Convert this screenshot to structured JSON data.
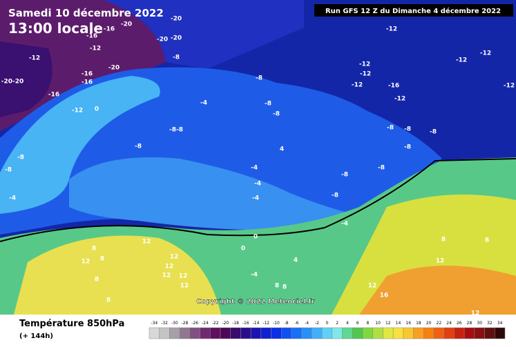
{
  "header": {
    "date": "Samedi 10 décembre 2022",
    "time": "13:00 locale",
    "run": "Run GFS 12 Z du Dimanche 4 décembre 2022"
  },
  "copyright": "Copyright © 2022 Meteociel.fr",
  "legend": {
    "title": "Température 850hPa",
    "subtitle": "(+ 144h)",
    "ticks": [
      -34,
      -32,
      -30,
      -28,
      -26,
      -24,
      -22,
      -20,
      -18,
      -16,
      -14,
      -12,
      -10,
      -8,
      -6,
      -4,
      -2,
      0,
      2,
      4,
      6,
      8,
      10,
      12,
      14,
      16,
      18,
      20,
      22,
      24,
      26,
      28,
      30,
      32,
      34
    ],
    "colors": [
      "#d8d8d8",
      "#c4c4c4",
      "#a8a0a8",
      "#907890",
      "#805080",
      "#702a70",
      "#601060",
      "#4c0858",
      "#3a0a6c",
      "#2a0c8c",
      "#1c14b0",
      "#1020d0",
      "#0a30e8",
      "#1050f0",
      "#1870f8",
      "#2890f8",
      "#40b0f8",
      "#60d0f8",
      "#80e8e8",
      "#60d890",
      "#50c850",
      "#80d840",
      "#b0e040",
      "#e0e840",
      "#f8e040",
      "#f8c830",
      "#f8a020",
      "#f88010",
      "#f06010",
      "#e04010",
      "#c82010",
      "#a80c10",
      "#881010",
      "#601010",
      "#300808"
    ]
  },
  "map_labels": [
    "-20",
    "-16",
    "-20",
    "-16",
    "-12",
    "-20",
    "-20",
    "-8",
    "-12",
    "-16",
    "-16",
    "-20",
    "-20-20",
    "-16",
    "-12",
    "0",
    "-8",
    "-4",
    "-8",
    "-8",
    "-8-8",
    "-8",
    "-8",
    "-8",
    "-4",
    "-4",
    "-4",
    "-4",
    "4",
    "-8",
    "-8",
    "-8",
    "-12",
    "-12",
    "-12",
    "-12",
    "-12",
    "-12",
    "-16",
    "-12",
    "-12",
    "-8",
    "-8",
    "-8",
    "-8",
    "0",
    "0",
    "-4",
    "12",
    "8",
    "12",
    "8",
    "12",
    "12",
    "12",
    "12",
    "12",
    "8",
    "8",
    "-4",
    "4",
    "8",
    "8",
    "12",
    "12",
    "8",
    "8",
    "16",
    "12"
  ]
}
